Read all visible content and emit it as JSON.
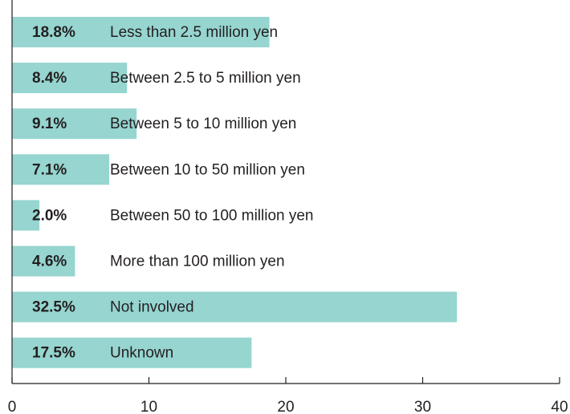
{
  "chart_data": {
    "type": "barh",
    "categories": [
      "Less than 2.5 million yen",
      "Between 2.5 to 5 million yen",
      "Between 5 to 10 million yen",
      "Between 10 to 50 million yen",
      "Between 50 to 100 million yen",
      "More than 100 million yen",
      "Not involved",
      "Unknown"
    ],
    "values": [
      18.8,
      8.4,
      9.1,
      7.1,
      2.0,
      4.6,
      32.5,
      17.5
    ],
    "value_labels": [
      "18.8%",
      "8.4%",
      "9.1%",
      "7.1%",
      "2.0%",
      "4.6%",
      "32.5%",
      "17.5%"
    ],
    "color": "#96d5d0",
    "xlim": [
      0,
      40
    ],
    "xticks": [
      0,
      10,
      20,
      30,
      40
    ]
  }
}
